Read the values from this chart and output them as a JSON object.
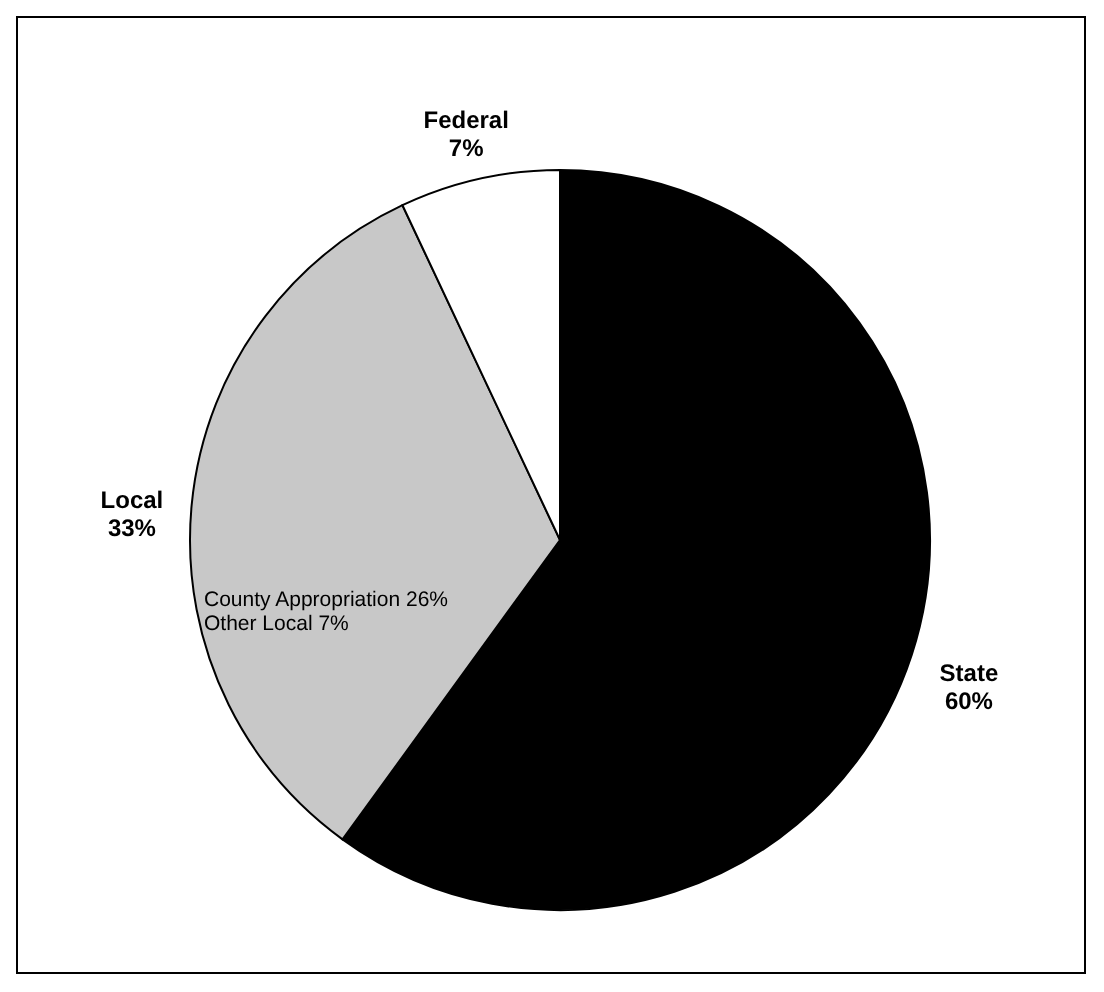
{
  "chart_data": {
    "type": "pie",
    "categories": [
      "State",
      "Local",
      "Federal"
    ],
    "values": [
      60,
      33,
      7
    ],
    "colors": [
      "#000000",
      "#c8c8c8",
      "#ffffff"
    ],
    "value_labels": [
      "60%",
      "33%",
      "7%"
    ],
    "annotations": [
      "County Appropriation 26%",
      "Other Local 7%"
    ]
  }
}
